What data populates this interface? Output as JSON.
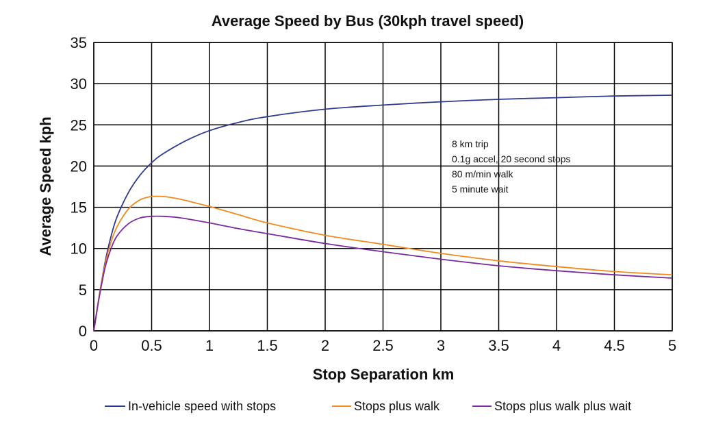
{
  "chart_data": {
    "type": "line",
    "title": "Average Speed by Bus (30kph travel speed)",
    "xlabel": "Stop Separation km",
    "ylabel": "Average Speed kph",
    "xlim": [
      0,
      5
    ],
    "ylim": [
      0,
      35
    ],
    "x_ticks": [
      "0",
      "0.5",
      "1",
      "1.5",
      "2",
      "2.5",
      "3",
      "3.5",
      "4",
      "4.5",
      "5"
    ],
    "y_ticks": [
      "0",
      "5",
      "10",
      "15",
      "20",
      "25",
      "30",
      "35"
    ],
    "grid": true,
    "annotation": [
      "8 km trip",
      "0.1g accel, 20 second stops",
      "80 m/min walk",
      "5 minute wait"
    ],
    "legend_position": "bottom",
    "series": [
      {
        "name": "In-vehicle speed with stops",
        "color": "#2e3a8c",
        "x": [
          0,
          0.05,
          0.1,
          0.15,
          0.2,
          0.3,
          0.4,
          0.5,
          0.6,
          0.8,
          1.0,
          1.25,
          1.5,
          2.0,
          2.5,
          3.0,
          3.5,
          4.0,
          4.5,
          5.0
        ],
        "y": [
          0,
          4.5,
          8.5,
          11.5,
          13.8,
          16.8,
          18.9,
          20.4,
          21.5,
          23.1,
          24.3,
          25.3,
          26.0,
          26.9,
          27.4,
          27.8,
          28.1,
          28.3,
          28.5,
          28.6
        ]
      },
      {
        "name": "Stops plus walk",
        "color": "#f08a1c",
        "x": [
          0,
          0.05,
          0.1,
          0.15,
          0.2,
          0.3,
          0.4,
          0.5,
          0.6,
          0.7,
          0.8,
          1.0,
          1.25,
          1.5,
          2.0,
          2.5,
          3.0,
          3.5,
          4.0,
          4.5,
          5.0
        ],
        "y": [
          0,
          4.5,
          8.2,
          10.8,
          12.6,
          14.8,
          15.9,
          16.3,
          16.3,
          16.1,
          15.8,
          15.1,
          14.1,
          13.1,
          11.6,
          10.5,
          9.4,
          8.5,
          7.8,
          7.2,
          6.8
        ]
      },
      {
        "name": "Stops plus walk plus wait",
        "color": "#7a2a9e",
        "x": [
          0,
          0.05,
          0.1,
          0.15,
          0.2,
          0.3,
          0.4,
          0.5,
          0.6,
          0.7,
          0.8,
          1.0,
          1.25,
          1.5,
          2.0,
          2.5,
          3.0,
          3.5,
          4.0,
          4.5,
          5.0
        ],
        "y": [
          0,
          4.3,
          7.8,
          10.0,
          11.5,
          13.0,
          13.7,
          13.9,
          13.9,
          13.8,
          13.6,
          13.1,
          12.4,
          11.8,
          10.6,
          9.6,
          8.7,
          7.9,
          7.3,
          6.8,
          6.4
        ]
      }
    ]
  }
}
